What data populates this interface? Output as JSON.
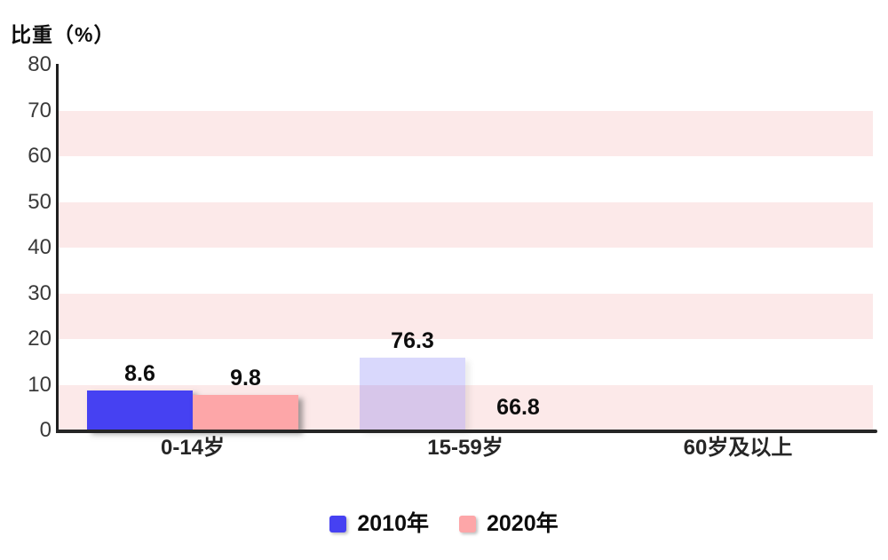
{
  "header": {
    "y_axis_title": "比重（%）"
  },
  "colors": {
    "background": "#ffffff",
    "axis": "#262626",
    "tick_label": "#3a3a3a",
    "value_label": "#0d0d0d",
    "category_label": "#262626",
    "grid_band": "#fce9e9",
    "bar_2010": "#4641f2",
    "bar_2020": "#fda6a8"
  },
  "chart_data": {
    "type": "bar",
    "title": "比重（%）",
    "ylabel": "比重（%）",
    "xlabel": "",
    "categories": [
      "0-14岁",
      "15-59岁",
      "60岁及以上"
    ],
    "series": [
      {
        "name": "2010年",
        "color": "#4641f2",
        "values": [
          8.6,
          76.3,
          null
        ]
      },
      {
        "name": "2020年",
        "color": "#fda6a8",
        "values": [
          9.8,
          66.8,
          null
        ]
      }
    ],
    "ylim": [
      0,
      80
    ],
    "y_ticks": [
      0,
      10,
      20,
      30,
      40,
      50,
      60,
      70,
      80
    ],
    "grid": "alternating horizontal pink bands",
    "band_color": "#fce9e9",
    "band_intervals": [
      [
        0,
        10
      ],
      [
        20,
        30
      ],
      [
        40,
        50
      ],
      [
        60,
        70
      ]
    ],
    "legend_position": "bottom-center",
    "displayed_bars": [
      {
        "category_index": 0,
        "series_index": 0,
        "value_label": "8.6",
        "displayed_height": 8.7,
        "opacity": 1
      },
      {
        "category_index": 0,
        "series_index": 1,
        "value_label": "9.8",
        "displayed_height": 7.8,
        "opacity": 1
      },
      {
        "category_index": 1,
        "series_index": 0,
        "value_label": "76.3",
        "displayed_height": 15.9,
        "opacity": 0.2
      },
      {
        "category_index": 1,
        "series_index": 1,
        "value_label": "66.8",
        "displayed_height": 0,
        "opacity": 1
      }
    ]
  },
  "legend": {
    "items": [
      {
        "label": "2010年",
        "color": "#4641f2"
      },
      {
        "label": "2020年",
        "color": "#fda6a8"
      }
    ]
  }
}
